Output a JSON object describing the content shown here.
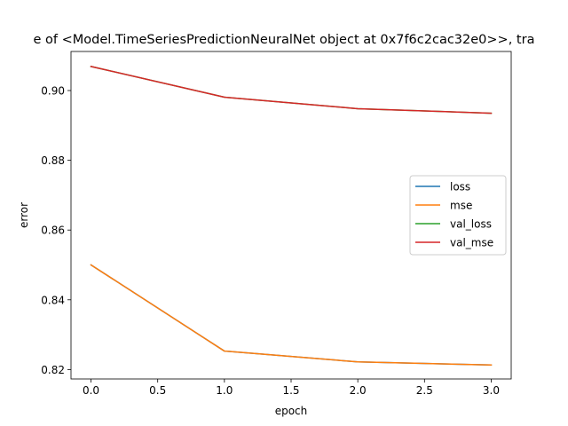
{
  "chart_data": {
    "type": "line",
    "title": "e of <Model.TimeSeriesPredictionNeuralNet object at 0x7f6c2cac32e0>>, tra",
    "xlabel": "epoch",
    "ylabel": "error",
    "xlim": [
      -0.15,
      3.15
    ],
    "ylim": [
      0.8173,
      0.9112
    ],
    "x_ticks": [
      0.0,
      0.5,
      1.0,
      1.5,
      2.0,
      2.5,
      3.0
    ],
    "x_tick_labels": [
      "0.0",
      "0.5",
      "1.0",
      "1.5",
      "2.0",
      "2.5",
      "3.0"
    ],
    "y_ticks": [
      0.82,
      0.84,
      0.86,
      0.88,
      0.9
    ],
    "y_tick_labels": [
      "0.82",
      "0.84",
      "0.86",
      "0.88",
      "0.90"
    ],
    "grid": false,
    "legend_position": "center-right",
    "x": [
      0,
      1,
      2,
      3
    ],
    "series": [
      {
        "name": "loss",
        "color": "#1f77b4",
        "values": [
          0.85,
          0.8253,
          0.8222,
          0.8213
        ]
      },
      {
        "name": "mse",
        "color": "#ff7f0e",
        "values": [
          0.85,
          0.8253,
          0.8222,
          0.8213
        ]
      },
      {
        "name": "val_loss",
        "color": "#2ca02c",
        "values": [
          0.9069,
          0.8981,
          0.8948,
          0.8935
        ]
      },
      {
        "name": "val_mse",
        "color": "#d62728",
        "values": [
          0.9069,
          0.8981,
          0.8948,
          0.8935
        ]
      }
    ]
  }
}
